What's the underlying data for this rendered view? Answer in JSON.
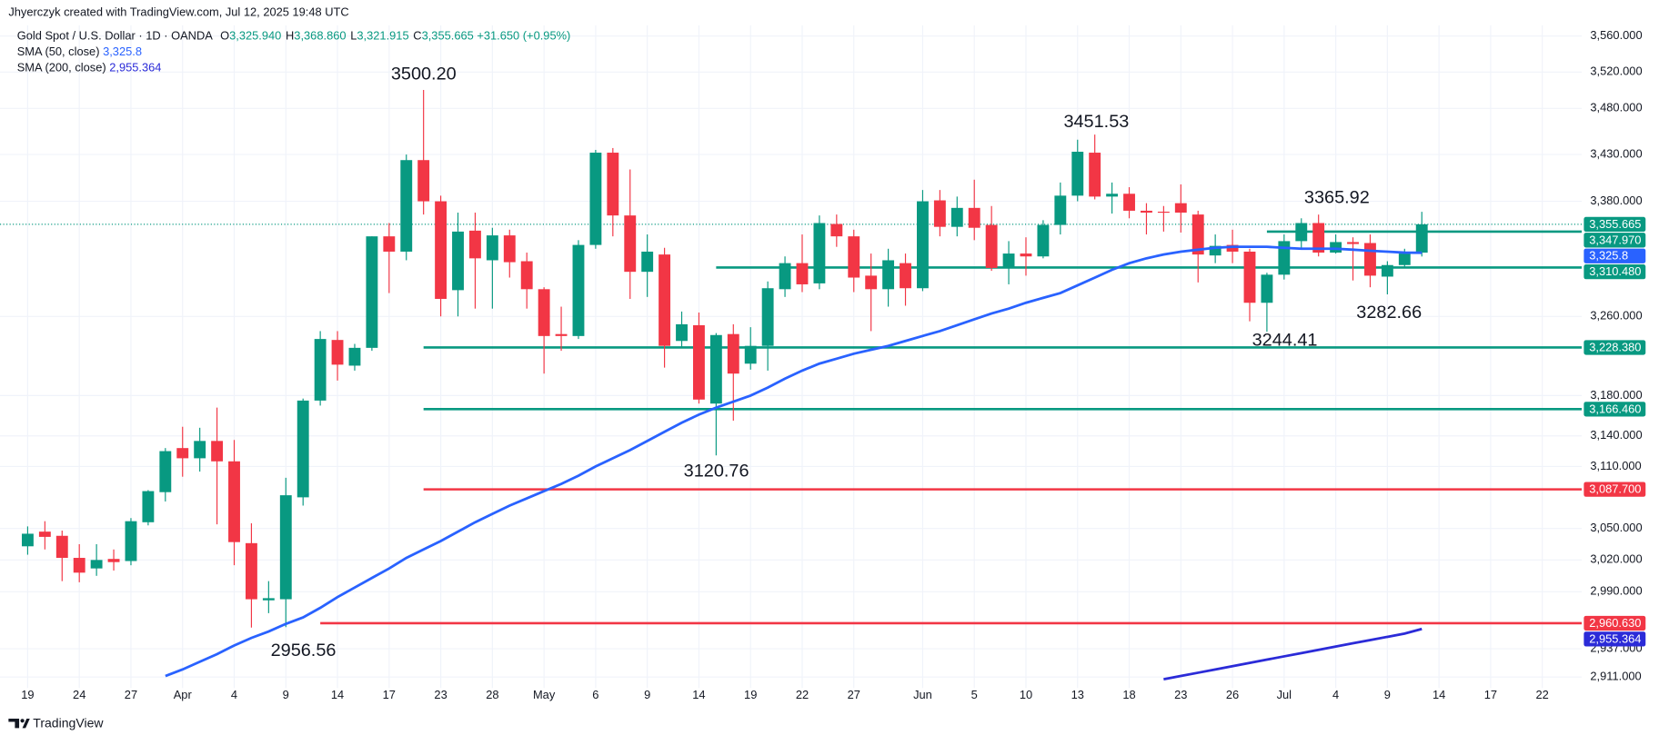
{
  "header": {
    "credit": "Jhyerczyk created with TradingView.com, Jul 12, 2025 19:48 UTC",
    "symbol": "Gold Spot / U.S. Dollar · 1D · OANDA",
    "ohlc": [
      {
        "key": "O",
        "value": "3,325.940"
      },
      {
        "key": "H",
        "value": "3,368.860"
      },
      {
        "key": "L",
        "value": "3,321.915"
      },
      {
        "key": "C",
        "value": "3,355.665"
      }
    ],
    "change": "+31.650 (+0.95%)"
  },
  "footer": {
    "brand": "TradingView"
  },
  "chart_data": {
    "type": "candlestick",
    "categories": [
      "19",
      null,
      null,
      "24",
      null,
      null,
      "27",
      null,
      null,
      "Apr",
      null,
      null,
      "4",
      null,
      null,
      "9",
      null,
      null,
      "14",
      null,
      null,
      "17",
      null,
      null,
      "23",
      null,
      null,
      "28",
      null,
      null,
      "May",
      null,
      null,
      "6",
      null,
      null,
      "9",
      null,
      null,
      "14",
      null,
      null,
      "19",
      null,
      null,
      "22",
      null,
      null,
      "27",
      null,
      null,
      null,
      "Jun",
      null,
      null,
      "5",
      null,
      null,
      "10",
      null,
      null,
      "13",
      null,
      null,
      "18",
      null,
      null,
      "23",
      null,
      null,
      "26",
      null,
      null,
      "Jul",
      null,
      null,
      "4",
      null,
      null,
      "9",
      null,
      null,
      "14",
      null,
      null,
      "17",
      null,
      null,
      "22"
    ],
    "open": [
      3033,
      3047,
      3043,
      3022,
      3012,
      3021,
      3019,
      3056,
      3085,
      3128,
      3118,
      3135,
      3115,
      3036,
      2982,
      2983,
      3080,
      3175,
      3236,
      3210,
      3228,
      3343,
      3327,
      3424,
      3380,
      3287,
      3349,
      3318,
      3344,
      3317,
      3288,
      3242,
      3240,
      3334,
      3432,
      3365,
      3306,
      3324,
      3235,
      3251,
      3172,
      3242,
      3212,
      3230,
      3288,
      3315,
      3294,
      3356,
      3343,
      3302,
      3288,
      3315,
      3289,
      3381,
      3353,
      3373,
      3355,
      3311,
      3325,
      3322,
      3355,
      3386,
      3432,
      3385,
      3388,
      3370,
      3369,
      3378,
      3366,
      3323,
      3334,
      3327,
      3274,
      3303,
      3338,
      3357,
      3326,
      3337,
      3336,
      3301,
      3313,
      3325.94,
      null,
      null,
      null,
      null,
      null,
      null,
      null
    ],
    "high": [
      3052,
      3057,
      3048,
      3035,
      3035,
      3030,
      3060,
      3087,
      3128,
      3149,
      3148,
      3168,
      3136,
      3055,
      3000,
      3099,
      3177,
      3245,
      3245,
      3232,
      3343,
      3357,
      3430,
      3500.2,
      3386,
      3368,
      3368,
      3352,
      3350,
      3326,
      3290,
      3270,
      3339,
      3435,
      3437,
      3414,
      3345,
      3331,
      3265,
      3264,
      3243,
      3252,
      3249,
      3296,
      3322,
      3345,
      3365,
      3366,
      3350,
      3325,
      3330,
      3325,
      3392,
      3392,
      3385,
      3403,
      3375,
      3338,
      3342,
      3360,
      3400,
      3446,
      3451.53,
      3400,
      3395,
      3378,
      3375,
      3398,
      3370,
      3345,
      3350,
      3330,
      3305,
      3345,
      3362,
      3365.92,
      3345,
      3342,
      3345,
      3317,
      3330,
      3368.86,
      null,
      null,
      null,
      null,
      null,
      null,
      null
    ],
    "low": [
      3025,
      3030,
      3000,
      2999,
      3005,
      3010,
      3015,
      3053,
      3076,
      3100,
      3105,
      3054,
      3015,
      2956.56,
      2970,
      2957,
      3072,
      3170,
      3195,
      3205,
      3225,
      3284,
      3318,
      3366,
      3260,
      3260,
      3268,
      3268,
      3300,
      3268,
      3202,
      3225,
      3237,
      3330,
      3343,
      3278,
      3280,
      3208,
      3228,
      3172,
      3120.76,
      3155,
      3206,
      3205,
      3280,
      3285,
      3288,
      3332,
      3285,
      3245,
      3270,
      3271,
      3286,
      3343,
      3343,
      3339,
      3307,
      3293,
      3302,
      3320,
      3345,
      3380,
      3382,
      3367,
      3362,
      3345,
      3348,
      3347,
      3295,
      3315,
      3315,
      3255,
      3244.41,
      3298,
      3330,
      3322,
      3325,
      3297,
      3290,
      3282.66,
      3310,
      3321.915,
      null,
      null,
      null,
      null,
      null,
      null,
      null
    ],
    "close": [
      3045,
      3042,
      3022,
      3008,
      3020,
      3018,
      3057,
      3086,
      3125,
      3118,
      3135,
      3115,
      3037,
      2983,
      2984,
      3082,
      3175,
      3237,
      3211,
      3228,
      3343,
      3327,
      3424,
      3380,
      3278,
      3348,
      3320,
      3344,
      3316,
      3288,
      3240,
      3240,
      3334,
      3432,
      3365,
      3306,
      3327,
      3230,
      3252,
      3176,
      3241,
      3202,
      3230,
      3289,
      3315,
      3293,
      3357,
      3343,
      3300,
      3288,
      3318,
      3289,
      3380,
      3353,
      3373,
      3352,
      3310,
      3325,
      3322,
      3355,
      3386,
      3433,
      3385,
      3388,
      3370,
      3368,
      3368,
      3368,
      3324,
      3333,
      3327,
      3274,
      3303,
      3338,
      3357,
      3326,
      3337,
      3335,
      3302,
      3313,
      3325,
      3355.665,
      null,
      null,
      null,
      null,
      null,
      null,
      null
    ],
    "up_color": "#089981",
    "down_color": "#f23645",
    "series": [
      {
        "name": "SMA (50, close)",
        "value_label": "3,325.8",
        "color": "#2962ff",
        "values": [
          null,
          null,
          null,
          null,
          null,
          null,
          null,
          null,
          2912,
          2918,
          2925,
          2932,
          2940,
          2947,
          2953,
          2960,
          2966,
          2975,
          2985,
          2994,
          3003,
          3012,
          3022,
          3030,
          3038,
          3047,
          3056,
          3064,
          3072,
          3079,
          3086,
          3093,
          3101,
          3110,
          3118,
          3126,
          3135,
          3144,
          3153,
          3161,
          3168,
          3174,
          3180,
          3188,
          3197,
          3205,
          3212,
          3217,
          3222,
          3226,
          3230,
          3235,
          3240,
          3245,
          3251,
          3257,
          3263,
          3268,
          3274,
          3279,
          3284,
          3292,
          3300,
          3308,
          3315,
          3320,
          3324,
          3327,
          3329,
          3331,
          3332,
          3332,
          3332,
          3331,
          3330,
          3330,
          3330,
          3329,
          3328,
          3327,
          3326,
          3325.8,
          null,
          null,
          null,
          null,
          null,
          null,
          null
        ]
      },
      {
        "name": "SMA (200, close)",
        "value_label": "2,955.364",
        "color": "#2b2bd8",
        "values": [
          null,
          null,
          null,
          null,
          null,
          null,
          null,
          null,
          null,
          null,
          null,
          null,
          null,
          null,
          null,
          null,
          null,
          null,
          null,
          null,
          null,
          null,
          null,
          null,
          null,
          null,
          null,
          null,
          null,
          null,
          null,
          null,
          null,
          null,
          null,
          null,
          null,
          null,
          null,
          null,
          null,
          null,
          null,
          null,
          null,
          null,
          null,
          null,
          null,
          null,
          null,
          null,
          null,
          null,
          null,
          null,
          null,
          null,
          null,
          null,
          null,
          null,
          null,
          null,
          null,
          null,
          2909,
          2912,
          2915,
          2918,
          2921,
          2924,
          2927,
          2930,
          2933,
          2936,
          2939,
          2942,
          2945,
          2948,
          2951,
          2955.364,
          null,
          null,
          null,
          null,
          null,
          null,
          null
        ]
      }
    ],
    "levels": [
      {
        "value": 3347.97,
        "label": "3,347.970",
        "color": "#089981"
      },
      {
        "value": 3310.48,
        "label": "3,310.480",
        "color": "#089981"
      },
      {
        "value": 3228.38,
        "label": "3,228.380",
        "color": "#089981"
      },
      {
        "value": 3166.46,
        "label": "3,166.460",
        "color": "#089981"
      },
      {
        "value": 3087.7,
        "label": "3,087.700",
        "color": "#f23645"
      },
      {
        "value": 2960.63,
        "label": "2,960.630",
        "color": "#f23645"
      }
    ],
    "last_price": {
      "value": 3355.665,
      "label": "3,355.665",
      "color": "#089981"
    },
    "annotations": [
      {
        "text": "3500.20"
      },
      {
        "text": "3451.53"
      },
      {
        "text": "3365.92"
      },
      {
        "text": "3282.66"
      },
      {
        "text": "3244.41"
      },
      {
        "text": "3120.76"
      },
      {
        "text": "2956.56"
      }
    ],
    "ylim": [
      2901,
      3572
    ],
    "log_scale": true,
    "grid": true,
    "yticks": [
      {
        "value": 3560,
        "label": "3,560.000"
      },
      {
        "value": 3520,
        "label": "3,520.000"
      },
      {
        "value": 3480,
        "label": "3,480.000"
      },
      {
        "value": 3430,
        "label": "3,430.000"
      },
      {
        "value": 3380,
        "label": "3,380.000"
      },
      {
        "value": 3260,
        "label": "3,260.000"
      },
      {
        "value": 3180,
        "label": "3,180.000"
      },
      {
        "value": 3140,
        "label": "3,140.000"
      },
      {
        "value": 3110,
        "label": "3,110.000"
      },
      {
        "value": 3050,
        "label": "3,050.000"
      },
      {
        "value": 3020,
        "label": "3,020.000"
      },
      {
        "value": 2990,
        "label": "2,990.000"
      },
      {
        "value": 2937,
        "label": "2,937.000"
      },
      {
        "value": 2911,
        "label": "2,911.000"
      }
    ]
  }
}
